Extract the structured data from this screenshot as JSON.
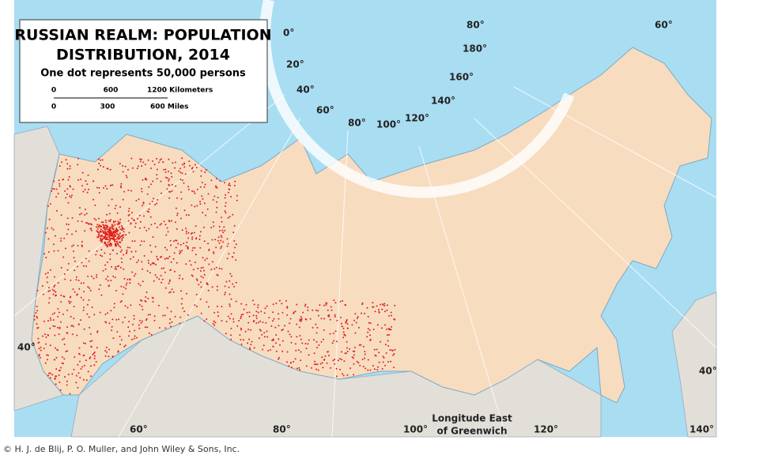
{
  "legend": {
    "title_lines": [
      "RUSSIAN REALM: POPULATION",
      "DISTRIBUTION, 2014"
    ],
    "subtitle": "One dot represents 50,000 persons",
    "scale_km": [
      "0",
      "600",
      "1200 Kilometers"
    ],
    "scale_mi": [
      "0",
      "300",
      "600 Miles"
    ]
  },
  "graticule": {
    "arc_labels": [
      "0°",
      "20°",
      "40°",
      "60°",
      "80°",
      "100°",
      "120°",
      "140°",
      "160°",
      "180°"
    ],
    "top_labels": [
      "80°",
      "60°"
    ],
    "side_labels": [
      "40°",
      "40°"
    ],
    "bottom_labels": [
      "60°",
      "80°",
      "100°",
      "120°",
      "140°"
    ]
  },
  "note": [
    "Longitude East",
    "of Greenwich"
  ],
  "credit": "© H. J. de Blij, P. O. Muller, and John Wiley & Sons, Inc."
}
